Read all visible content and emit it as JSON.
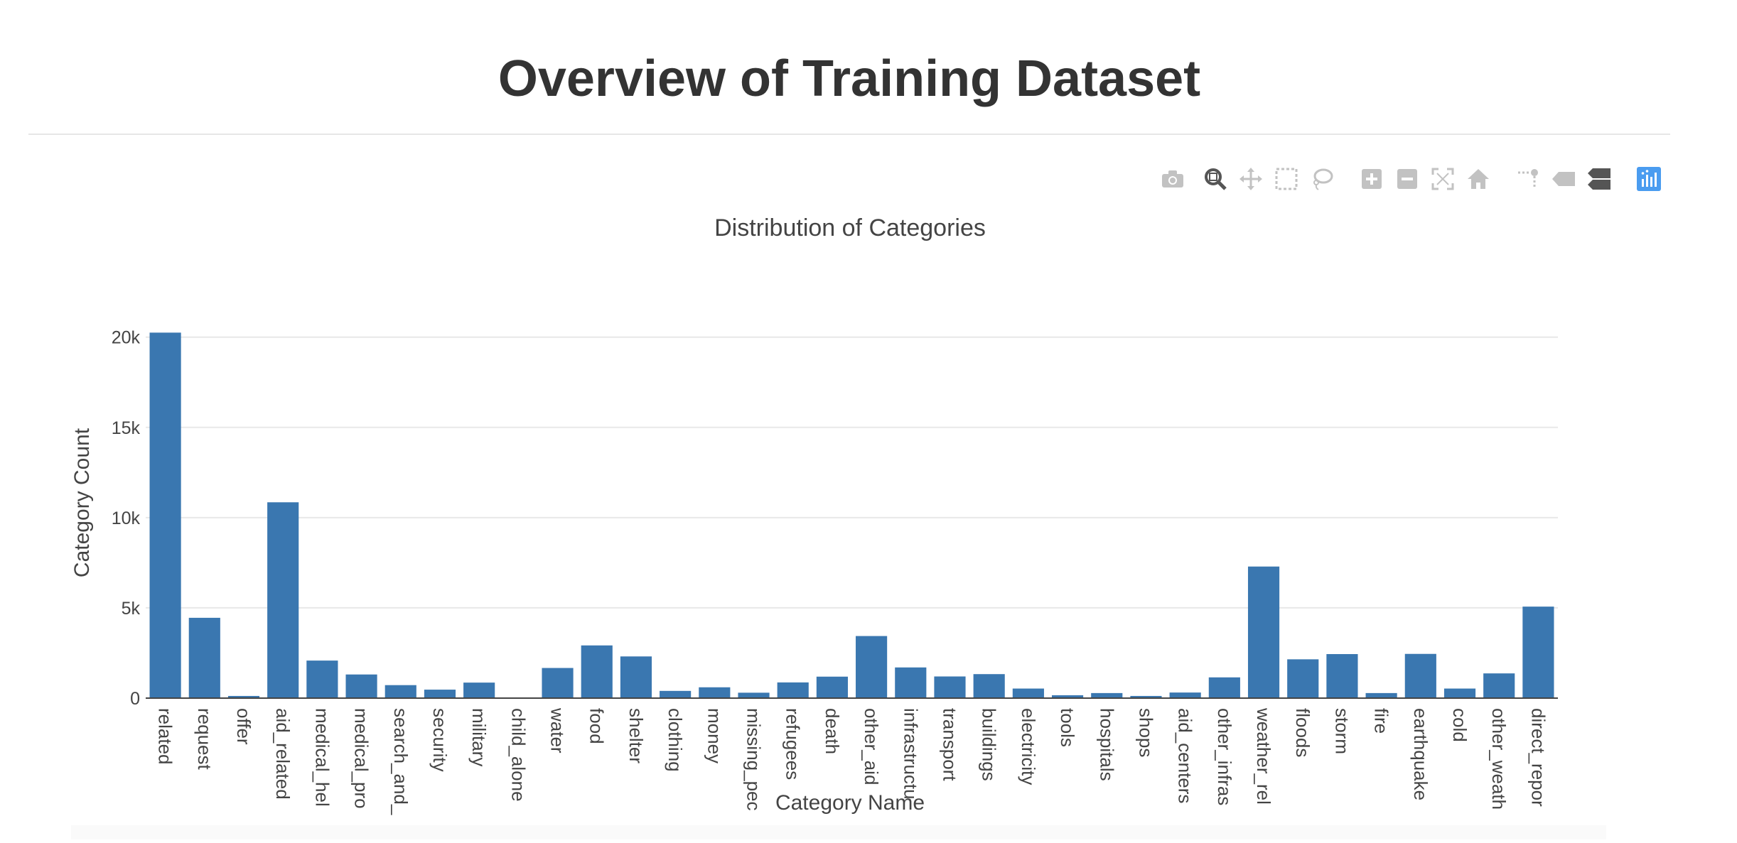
{
  "page": {
    "title": "Overview of Training Dataset"
  },
  "modebar": {
    "buttons": [
      {
        "icon": "camera-icon"
      },
      {
        "icon": "zoom-icon"
      },
      {
        "icon": "pan-icon"
      },
      {
        "icon": "box-select-icon"
      },
      {
        "icon": "lasso-select-icon"
      },
      {
        "icon": "zoom-in-icon"
      },
      {
        "icon": "zoom-out-icon"
      },
      {
        "icon": "autoscale-icon"
      },
      {
        "icon": "reset-axes-icon"
      },
      {
        "icon": "toggle-spike-lines-icon"
      },
      {
        "icon": "hover-closest-icon"
      },
      {
        "icon": "hover-compare-icon"
      },
      {
        "icon": "plotly-logo-icon"
      }
    ]
  },
  "colors": {
    "bar": "#3a77b0",
    "grid": "#e8e8e8",
    "text": "#444444"
  },
  "chart_data": {
    "type": "bar",
    "title": "Distribution of Categories",
    "xlabel": "Category Name",
    "ylabel": "Category Count",
    "ylim": [
      0,
      20500
    ],
    "yticks": [
      0,
      5000,
      10000,
      15000,
      20000
    ],
    "ytick_labels": [
      "0",
      "5k",
      "10k",
      "15k",
      "20k"
    ],
    "grid": true,
    "categories": [
      "related",
      "request",
      "offer",
      "aid_related",
      "medical_hel",
      "medical_pro",
      "search_and_",
      "security",
      "military",
      "child_alone",
      "water",
      "food",
      "shelter",
      "clothing",
      "money",
      "missing_pec",
      "refugees",
      "death",
      "other_aid",
      "infrastructu",
      "transport",
      "buildings",
      "electricity",
      "tools",
      "hospitals",
      "shops",
      "aid_centers",
      "other_infras",
      "weather_rel",
      "floods",
      "storm",
      "fire",
      "earthquake",
      "cold",
      "other_weath",
      "direct_repor"
    ],
    "values": [
      20250,
      4450,
      120,
      10850,
      2080,
      1310,
      720,
      470,
      860,
      0,
      1670,
      2920,
      2310,
      400,
      600,
      300,
      870,
      1190,
      3440,
      1700,
      1200,
      1330,
      530,
      160,
      280,
      120,
      310,
      1150,
      7290,
      2150,
      2440,
      280,
      2450,
      530,
      1370,
      5070
    ]
  }
}
